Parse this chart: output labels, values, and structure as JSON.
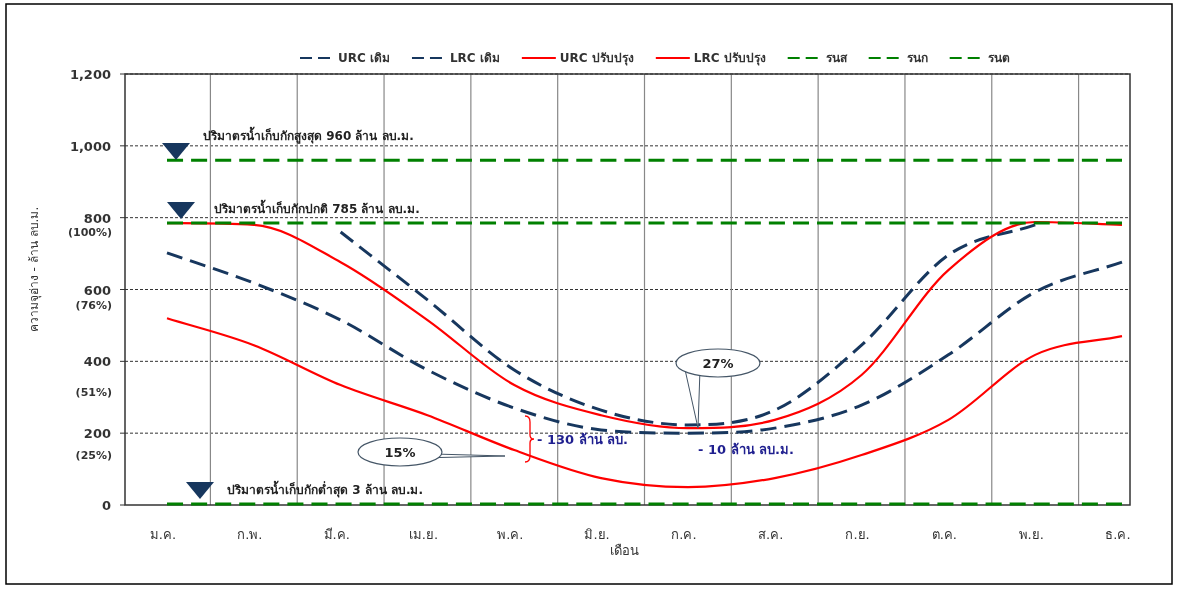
{
  "chart_data": {
    "type": "line",
    "xlabel": "เดือน",
    "ylabel": "ความจุอ่าง - ล้าน ลบ.ม.",
    "categories": [
      "ม.ค.",
      "ก.พ.",
      "มี.ค.",
      "เม.ย.",
      "พ.ค.",
      "มิ.ย.",
      "ก.ค.",
      "ส.ค.",
      "ก.ย.",
      "ต.ค.",
      "พ.ย.",
      "ธ.ค."
    ],
    "series": [
      {
        "name": "URC เดิม",
        "color": "#17375e",
        "line_style": "dashed",
        "values": [
          null,
          null,
          760,
          571,
          376,
          264,
          223,
          264,
          445,
          696,
          780,
          null
        ]
      },
      {
        "name": "LRC เดิม",
        "color": "#17375e",
        "line_style": "dashed",
        "values": [
          702,
          618,
          515,
          376,
          270,
          209,
          200,
          214,
          278,
          418,
          593,
          676
        ]
      },
      {
        "name": "URC ปรับปรุง",
        "color": "#ff0000",
        "line_style": "solid",
        "values": [
          785,
          780,
          676,
          515,
          334,
          250,
          214,
          237,
          362,
          654,
          788,
          780
        ]
      },
      {
        "name": "LRC ปรับปรุง",
        "color": "#ff0000",
        "line_style": "solid",
        "values": [
          520,
          445,
          334,
          250,
          153,
          75,
          50,
          75,
          139,
          237,
          418,
          470
        ]
      },
      {
        "name": "รนส",
        "color": "#008000",
        "line_style": "dashed",
        "values": [
          960,
          960,
          960,
          960,
          960,
          960,
          960,
          960,
          960,
          960,
          960,
          960
        ]
      },
      {
        "name": "รนก",
        "color": "#008000",
        "line_style": "dashed",
        "values": [
          785,
          785,
          785,
          785,
          785,
          785,
          785,
          785,
          785,
          785,
          785,
          785
        ]
      },
      {
        "name": "รนต",
        "color": "#008000",
        "line_style": "dashed",
        "values": [
          3,
          3,
          3,
          3,
          3,
          3,
          3,
          3,
          3,
          3,
          3,
          3
        ]
      }
    ],
    "ylim": [
      0,
      1200
    ],
    "yticks": [
      0,
      200,
      400,
      600,
      800,
      {
        "value": 1000,
        "label": "1,000"
      },
      {
        "value": 1200,
        "label": "1,200"
      }
    ],
    "grid": true,
    "legend": "top",
    "annotations": [
      "ปริมาตรน้ำเก็บกักสูงสุด  960  ล้าน ลบ.ม.",
      "ปริมาตรน้ำเก็บกักปกติ  785  ล้าน ลบ.ม.",
      "ปริมาตรน้ำเก็บกักต่ำสุด 3  ล้าน ลบ.ม.",
      "(100%)",
      "(76%)",
      "(51%)",
      "(25%)",
      "27%",
      "15%",
      "- 130 ล้าน ลบ.",
      "- 10 ล้าน ลบ.ม."
    ]
  }
}
